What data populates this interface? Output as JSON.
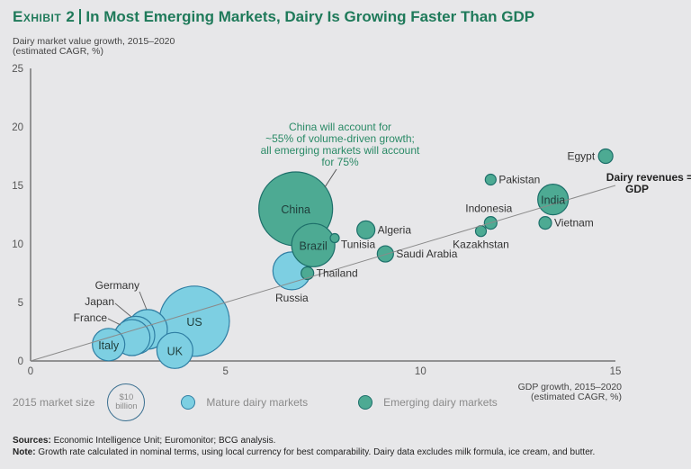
{
  "title": {
    "exhibit": "Exhibit 2",
    "text": "In Most Emerging Markets, Dairy Is Growing Faster Than GDP"
  },
  "chart_data": {
    "type": "scatter",
    "subtype": "bubble",
    "title": "In Most Emerging Markets, Dairy Is Growing Faster Than GDP",
    "ylabel_line1": "Dairy market value growth, 2015–2020",
    "ylabel_line2": "(estimated CAGR, %)",
    "xlabel_line1": "GDP growth, 2015–2020",
    "xlabel_line2": "(estimated CAGR, %)",
    "xlim": [
      0,
      15
    ],
    "ylim": [
      0,
      25
    ],
    "xticks": [
      0,
      5,
      10,
      15
    ],
    "yticks": [
      0,
      5,
      10,
      15,
      20,
      25
    ],
    "grid": false,
    "colors": {
      "mature_fill": "#7dcfe2",
      "mature_stroke": "#2f7ea3",
      "emerging_fill": "#4daa93",
      "emerging_stroke": "#1d6f6a",
      "trend": "#8a8a8a",
      "annotation": "#2a8a66"
    },
    "reference_line": {
      "label_line1": "Dairy revenues =",
      "label_line2": "GDP",
      "from": [
        0,
        0
      ],
      "to": [
        15,
        15
      ]
    },
    "annotation": {
      "lines": [
        "China will account for",
        "~55% of volume-driven growth;",
        "all emerging markets will account",
        "for 75%"
      ],
      "target": "China"
    },
    "series": [
      {
        "name": "Mature dairy markets",
        "points": [
          {
            "label": "Japan",
            "x": 2.7,
            "y": 2.2,
            "size": 21,
            "label_pos": "leader"
          },
          {
            "label": "France",
            "x": 2.6,
            "y": 2.0,
            "size": 20,
            "label_pos": "leader"
          },
          {
            "label": "Germany",
            "x": 3.0,
            "y": 2.7,
            "size": 22,
            "label_pos": "leader"
          },
          {
            "label": "Italy",
            "x": 2.0,
            "y": 1.4,
            "size": 18,
            "label_pos": "inside"
          },
          {
            "label": "US",
            "x": 4.2,
            "y": 3.4,
            "size": 39,
            "label_pos": "inside"
          },
          {
            "label": "UK",
            "x": 3.7,
            "y": 0.9,
            "size": 20,
            "label_pos": "inside"
          },
          {
            "label": "Russia",
            "x": 6.7,
            "y": 7.7,
            "size": 21,
            "label_pos": "below"
          }
        ]
      },
      {
        "name": "Emerging dairy markets",
        "points": [
          {
            "label": "China",
            "x": 6.8,
            "y": 13.0,
            "size": 41,
            "label_pos": "inside"
          },
          {
            "label": "Brazil",
            "x": 7.25,
            "y": 9.9,
            "size": 24,
            "label_pos": "inside"
          },
          {
            "label": "Thailand",
            "x": 7.1,
            "y": 7.5,
            "size": 7,
            "label_pos": "right"
          },
          {
            "label": "Tunisia",
            "x": 7.8,
            "y": 10.5,
            "size": 5,
            "label_pos": "below-right"
          },
          {
            "label": "Algeria",
            "x": 8.6,
            "y": 11.2,
            "size": 10,
            "label_pos": "right"
          },
          {
            "label": "Saudi Arabia",
            "x": 9.1,
            "y": 9.15,
            "size": 9,
            "label_pos": "right"
          },
          {
            "label": "Kazakhstan",
            "x": 11.55,
            "y": 11.1,
            "size": 6,
            "label_pos": "below"
          },
          {
            "label": "Indonesia",
            "x": 11.8,
            "y": 11.8,
            "size": 7,
            "label_pos": "above"
          },
          {
            "label": "Pakistan",
            "x": 11.8,
            "y": 15.5,
            "size": 6,
            "label_pos": "right"
          },
          {
            "label": "Vietnam",
            "x": 13.2,
            "y": 11.8,
            "size": 7,
            "label_pos": "right"
          },
          {
            "label": "India",
            "x": 13.4,
            "y": 13.8,
            "size": 17,
            "label_pos": "inside"
          },
          {
            "label": "Egypt",
            "x": 14.75,
            "y": 17.5,
            "size": 8,
            "label_pos": "left"
          }
        ]
      }
    ]
  },
  "legend": {
    "size_label": "2015 market size",
    "size_value_line1": "$10",
    "size_value_line2": "billion",
    "mature_label": "Mature dairy markets",
    "emerging_label": "Emerging dairy markets"
  },
  "footer": {
    "sources_label": "Sources:",
    "sources_text": " Economic Intelligence Unit; Euromonitor; BCG analysis.",
    "note_label": "Note:",
    "note_text": " Growth rate calculated in nominal terms, using local currency for best comparability. Dairy data excludes milk formula, ice cream, and butter."
  }
}
